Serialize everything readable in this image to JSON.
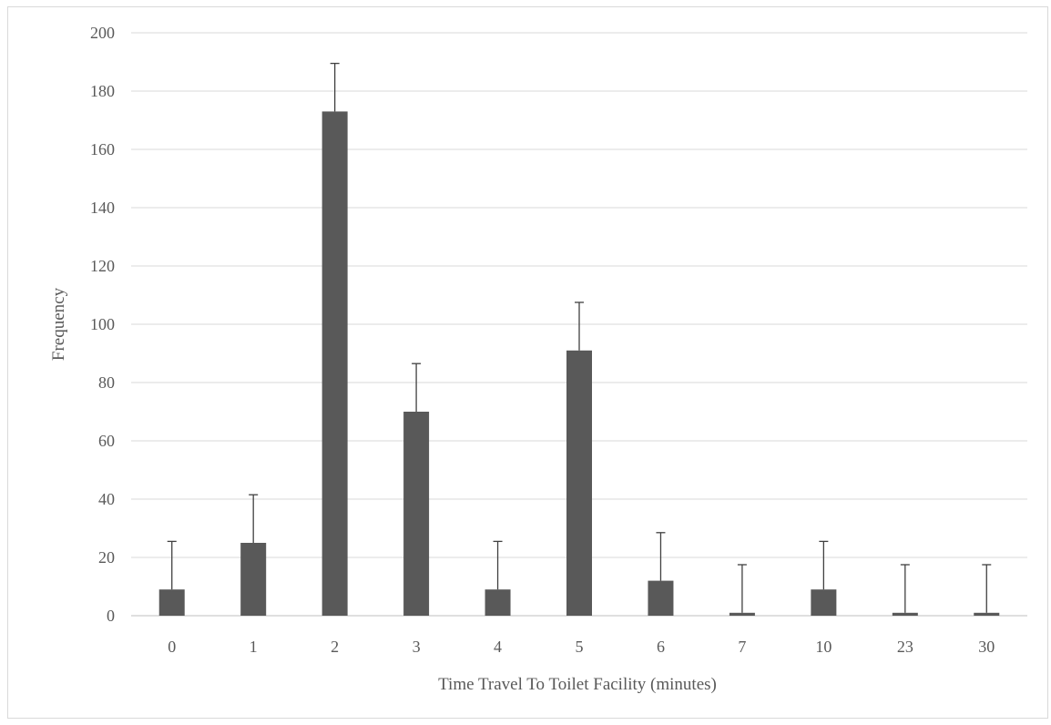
{
  "chart_data": {
    "type": "bar",
    "title": "",
    "xlabel": "Time Travel To Toilet Facility (minutes)",
    "ylabel": "Frequency",
    "categories": [
      "0",
      "1",
      "2",
      "3",
      "4",
      "5",
      "6",
      "7",
      "10",
      "23",
      "30"
    ],
    "values": [
      9,
      25,
      173,
      70,
      9,
      91,
      12,
      1,
      9,
      1,
      1
    ],
    "error_plus": 16.5,
    "ylim": [
      0,
      200
    ],
    "yticks": [
      "0",
      "20",
      "40",
      "60",
      "80",
      "100",
      "120",
      "140",
      "160",
      "180",
      "200"
    ],
    "grid": true,
    "legend": "none",
    "colors": {
      "bar": "#595959",
      "error_bar": "#404040",
      "grid": "#d9d9d9",
      "text": "#595959"
    }
  }
}
